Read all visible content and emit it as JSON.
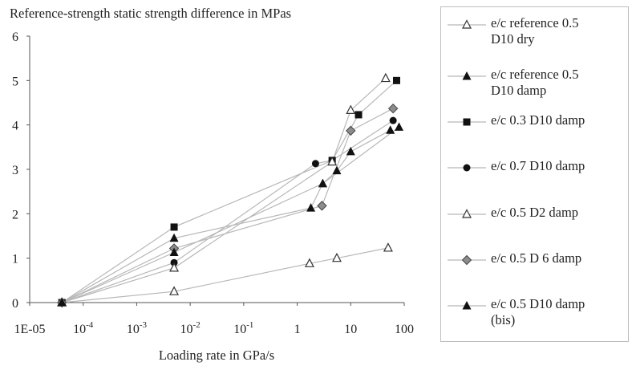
{
  "chart_data": {
    "type": "line",
    "title": "Reference-strength static strength difference in MPas",
    "xlabel": "Loading rate in GPa/s",
    "ylabel": "",
    "x_scale": "log",
    "xlim": [
      1e-05,
      100
    ],
    "ylim": [
      0,
      6
    ],
    "x_tick_labels": [
      "1E-05",
      "10-4",
      "10-3",
      "10-2",
      "10-1",
      "1",
      "10",
      "100"
    ],
    "y_ticks": [
      0,
      1,
      2,
      3,
      4,
      5,
      6
    ],
    "grid": false,
    "legend_position": "right",
    "series": [
      {
        "name": "e/c reference 0.5 D10 dry",
        "marker": "triangle-open",
        "points": [
          [
            4e-05,
            0
          ],
          [
            0.005,
            0.25
          ],
          [
            1.7,
            0.88
          ],
          [
            5.5,
            1.0
          ],
          [
            50,
            1.23
          ]
        ]
      },
      {
        "name": "e/c reference 0.5 D10 damp",
        "marker": "triangle-filled",
        "points": [
          [
            4e-05,
            0
          ],
          [
            0.005,
            1.45
          ],
          [
            1.8,
            2.13
          ],
          [
            3,
            2.68
          ],
          [
            5.5,
            2.97
          ],
          [
            10,
            3.4
          ],
          [
            55,
            3.88
          ]
        ]
      },
      {
        "name": "e/c 0.3 D10 damp",
        "marker": "square-filled",
        "points": [
          [
            4e-05,
            0
          ],
          [
            0.005,
            1.7
          ],
          [
            4.5,
            3.2
          ],
          [
            14,
            4.23
          ],
          [
            72,
            5.0
          ]
        ]
      },
      {
        "name": "e/c 0.7 D10 damp",
        "marker": "circle-filled",
        "points": [
          [
            4e-05,
            0
          ],
          [
            0.005,
            0.9
          ],
          [
            2.2,
            3.13
          ],
          [
            4.5,
            3.2
          ],
          [
            62,
            4.1
          ]
        ]
      },
      {
        "name": "e/c 0.5 D2 damp",
        "marker": "triangle-open",
        "points": [
          [
            4e-05,
            0
          ],
          [
            0.005,
            0.78
          ],
          [
            4.5,
            3.17
          ],
          [
            10,
            4.33
          ],
          [
            45,
            5.05
          ]
        ]
      },
      {
        "name": "e/c 0.5 D 6 damp",
        "marker": "diamond",
        "points": [
          [
            4e-05,
            0
          ],
          [
            0.005,
            1.22
          ],
          [
            2.9,
            2.18
          ],
          [
            10,
            3.87
          ],
          [
            62,
            4.37
          ]
        ]
      },
      {
        "name": "e/c 0.5 D10 damp (bis)",
        "marker": "triangle-filled",
        "points": [
          [
            4e-05,
            0
          ],
          [
            0.005,
            1.13
          ],
          [
            3,
            2.68
          ],
          [
            80,
            3.95
          ]
        ]
      }
    ]
  },
  "legend": [
    {
      "label": "e/c reference 0.5\nD10 dry",
      "marker": "triangle-open"
    },
    {
      "label": "e/c reference 0.5\nD10 damp",
      "marker": "triangle-filled"
    },
    {
      "label": "e/c 0.3 D10 damp",
      "marker": "square-filled"
    },
    {
      "label": "e/c 0.7 D10 damp",
      "marker": "circle-filled"
    },
    {
      "label": "e/c 0.5 D2 damp",
      "marker": "triangle-open"
    },
    {
      "label": "e/c 0.5 D 6 damp",
      "marker": "diamond"
    },
    {
      "label": "e/c 0.5 D10 damp\n(bis)",
      "marker": "triangle-filled"
    }
  ],
  "colors": {
    "line": "#b8b8b8",
    "marker_fill": "#111111",
    "diamond_fill": "#8c8c8c",
    "axis": "#555555"
  }
}
